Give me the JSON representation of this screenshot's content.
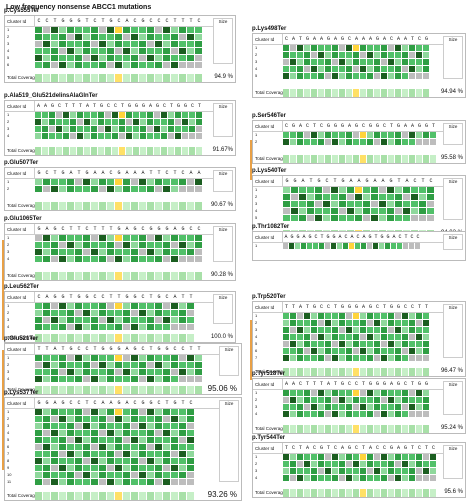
{
  "title": "Low frequency nonsense ABCC1 mutations",
  "common": {
    "cluster_id": "Cluster Id",
    "total_coverage": "Total Coverage:",
    "size": "Size"
  },
  "left": [
    {
      "label": "p.Cys555Ter",
      "seq": "CCTGGGTCTGCACGCCCTTTC",
      "pct": "94.9 %",
      "big": false
    },
    {
      "label": "p.Ala519_Glu521delinsAlaGlnTer",
      "seq": "AAGCTTTATGCCTGGGAGCTGGCT",
      "pct": "91.67%",
      "big": false
    },
    {
      "label": "p.Glu507Ter",
      "seq": "GCTGATGAACGAAATTCTCAA",
      "pct": "90.67 %",
      "big": false
    },
    {
      "label": "p.Glu1065Ter",
      "seq": "GAGCTTCTTTGAGCGGGAGCC",
      "pct": "90.28 %",
      "big": false
    },
    {
      "label": "p.Leu562Ter",
      "seq": "CAGGTGGCCTTGGCTGCATT",
      "pct": "100.0 %",
      "big": false
    },
    {
      "label": "p.Glu521Ter",
      "seq": "TTATGCCTGGGAGCTGGCCTT",
      "pct": "95.06 %",
      "big": true
    },
    {
      "label": "p.Lys537Ter",
      "seq": "GGAGCCTCAAGACGGCTGTC",
      "pct": "93.26 %",
      "big": true
    }
  ],
  "right": [
    {
      "label": "p.Lys498Ter",
      "seq": "CATGAAGAGCAAAGACAATCG",
      "pct": "94.94 %"
    },
    {
      "label": "p.Ser546Ter",
      "seq": "CGACTCGGGAGCGGCTGAAGGT",
      "pct": "95.58 %"
    },
    {
      "label": "p.Lys540Ter",
      "seq": "GGATGCTGAAGAAGTACTC",
      "pct": "94.02 %"
    },
    {
      "label": "p.Thr1082Ter",
      "seq": "AGGAGCTGGACACAGTGGACTCC",
      "pct": "",
      "side_only": true
    },
    {
      "label": "p.Trp520Ter",
      "seq": "TTATGCCTGGGAGCTGGCCTT",
      "pct": "96.47 %"
    },
    {
      "label": "p.Tyr518Ter",
      "seq": "AACTTTATGCCTGGGAGCTGG",
      "pct": "95.24 %"
    },
    {
      "label": "p.Tyr544Ter",
      "seq": "TCTACGTCAGCTACCGAGTCTC",
      "pct": "95.6 %"
    }
  ]
}
